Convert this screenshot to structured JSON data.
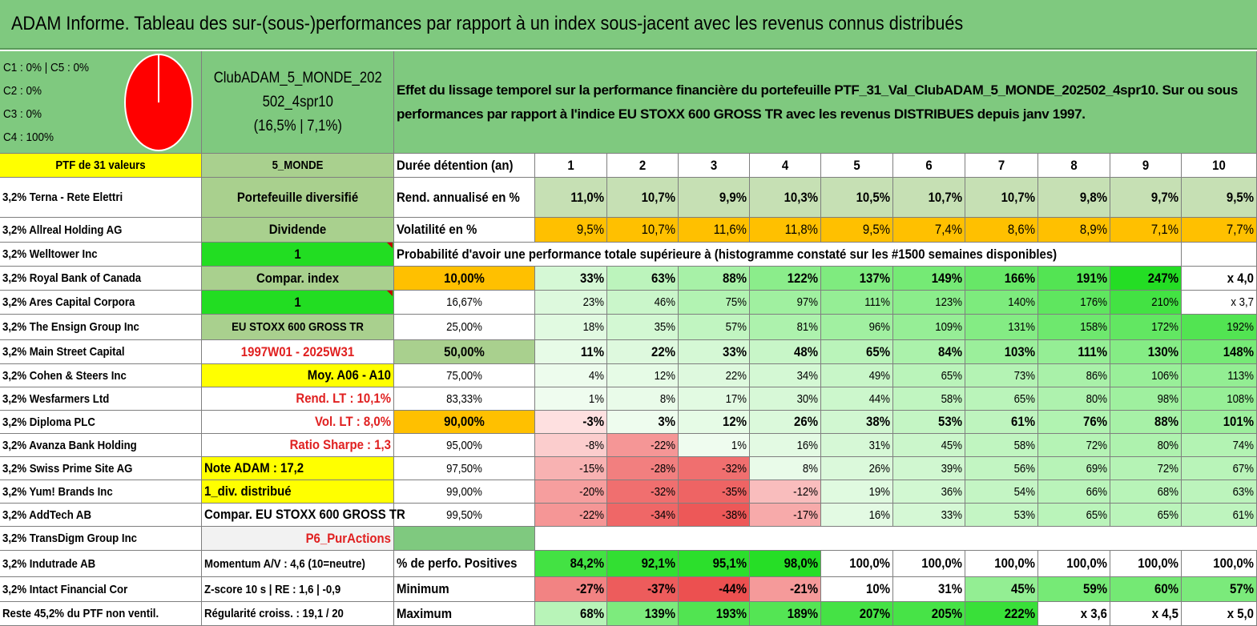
{
  "title": "ADAM Informe. Tableau des sur-(sous-)performances par rapport à un index sous-jacent avec les revenus connus distribués",
  "pie": {
    "lines": [
      "C1 : 0% | C5 : 0%",
      "C2 : 0%",
      "C3 : 0%",
      "C4 : 100%"
    ],
    "fill_color": "#ff0000"
  },
  "portfolio": {
    "name_line1": "ClubADAM_5_MONDE_202",
    "name_line2": "502_4spr10",
    "name_line3": "(16,5% | 7,1%)"
  },
  "description": "Effet du lissage temporel sur la performance financière du portefeuille PTF_31_Val_ClubADAM_5_MONDE_202502_4spr10. Sur ou sous performances par rapport à l'indice EU STOXX 600 GROSS TR avec les revenus DISTRIBUES depuis janv 1997.",
  "holdings_header": "PTF de 31 valeurs",
  "holdings": [
    "3,2% Terna - Rete Elettri",
    "3,2% Allreal Holding AG",
    "3,2% Welltower Inc",
    "3,2% Royal Bank of Canada",
    "3,2% Ares Capital Corpora",
    "3,2% The Ensign Group Inc",
    "3,2% Main Street Capital",
    "3,2% Cohen & Steers Inc",
    "3,2% Wesfarmers Ltd",
    "3,2% Diploma PLC",
    "3,2% Avanza Bank Holding",
    "3,2% Swiss Prime Site AG",
    "3,2% Yum! Brands Inc",
    "3,2% AddTech AB",
    "3,2% TransDigm Group Inc",
    "3,2% Indutrade AB",
    "3,2% Intact Financial Cor",
    "Reste 45,2% du PTF non ventil."
  ],
  "info": [
    "5_MONDE",
    "Portefeuille diversifié",
    "Dividende",
    "1",
    "Compar. index",
    "1",
    "EU STOXX 600 GROSS TR",
    "1997W01 - 2025W31",
    "Moy. A06 - A10",
    "Rend. LT : 10,1%",
    "Vol. LT : 8,0%",
    "Ratio Sharpe : 1,3",
    "Note ADAM : 17,2",
    "1_div. distribué",
    "Compar. EU STOXX 600 GROSS TR",
    "P6_PurActions",
    "Momentum A/V : 4,6 (10=neutre)",
    "Z-score 10 s | RE : 1,6 | -0,9",
    "Régularité croiss. : 19,1 / 20"
  ],
  "labels": {
    "duree": "Durée détention (an)",
    "rend": "Rend. annualisé en %",
    "vol": "Volatilité en %",
    "proba": "Probabilité d'avoir une performance totale supérieure à (histogramme constaté sur les #1500 semaines disponibles)",
    "positives": "% de perfo. Positives",
    "minimum": "Minimum",
    "maximum": "Maximum"
  },
  "years": [
    "1",
    "2",
    "3",
    "4",
    "5",
    "6",
    "7",
    "8",
    "9",
    "10"
  ],
  "rendement": [
    "11,0%",
    "10,7%",
    "9,9%",
    "10,3%",
    "10,5%",
    "10,7%",
    "10,7%",
    "9,8%",
    "9,7%",
    "9,5%"
  ],
  "volatilite": [
    "9,5%",
    "10,7%",
    "11,6%",
    "11,8%",
    "9,5%",
    "7,4%",
    "8,6%",
    "8,9%",
    "7,1%",
    "7,7%"
  ],
  "quantiles": [
    {
      "p": "10,00%",
      "values": [
        "33%",
        "63%",
        "88%",
        "122%",
        "137%",
        "149%",
        "166%",
        "191%",
        "247%",
        "x 4,0"
      ]
    },
    {
      "p": "16,67%",
      "values": [
        "23%",
        "46%",
        "75%",
        "97%",
        "111%",
        "123%",
        "140%",
        "176%",
        "210%",
        "x 3,7"
      ]
    },
    {
      "p": "25,00%",
      "values": [
        "18%",
        "35%",
        "57%",
        "81%",
        "96%",
        "109%",
        "131%",
        "158%",
        "172%",
        "192%"
      ]
    },
    {
      "p": "50,00%",
      "values": [
        "11%",
        "22%",
        "33%",
        "48%",
        "65%",
        "84%",
        "103%",
        "111%",
        "130%",
        "148%"
      ]
    },
    {
      "p": "75,00%",
      "values": [
        "4%",
        "12%",
        "22%",
        "34%",
        "49%",
        "65%",
        "73%",
        "86%",
        "106%",
        "113%"
      ]
    },
    {
      "p": "83,33%",
      "values": [
        "1%",
        "8%",
        "17%",
        "30%",
        "44%",
        "58%",
        "65%",
        "80%",
        "98%",
        "108%"
      ]
    },
    {
      "p": "90,00%",
      "values": [
        "-3%",
        "3%",
        "12%",
        "26%",
        "38%",
        "53%",
        "61%",
        "76%",
        "88%",
        "101%"
      ]
    },
    {
      "p": "95,00%",
      "values": [
        "-8%",
        "-22%",
        "1%",
        "16%",
        "31%",
        "45%",
        "58%",
        "72%",
        "80%",
        "74%"
      ]
    },
    {
      "p": "97,50%",
      "values": [
        "-15%",
        "-28%",
        "-32%",
        "8%",
        "26%",
        "39%",
        "56%",
        "69%",
        "72%",
        "67%"
      ]
    },
    {
      "p": "99,00%",
      "values": [
        "-20%",
        "-32%",
        "-35%",
        "-12%",
        "19%",
        "36%",
        "54%",
        "66%",
        "68%",
        "63%"
      ]
    },
    {
      "p": "99,50%",
      "values": [
        "-22%",
        "-34%",
        "-38%",
        "-17%",
        "16%",
        "33%",
        "53%",
        "65%",
        "65%",
        "61%"
      ]
    }
  ],
  "positives": [
    "84,2%",
    "92,1%",
    "95,1%",
    "98,0%",
    "100,0%",
    "100,0%",
    "100,0%",
    "100,0%",
    "100,0%",
    "100,0%"
  ],
  "minimum": [
    "-27%",
    "-37%",
    "-44%",
    "-21%",
    "10%",
    "31%",
    "45%",
    "59%",
    "60%",
    "57%"
  ],
  "maximum": [
    "68%",
    "139%",
    "193%",
    "189%",
    "207%",
    "205%",
    "222%",
    "x 3,6",
    "x 4,5",
    "x 5,0"
  ],
  "colors": {
    "header_green": "#7fc97f",
    "yellow": "#ffff00",
    "bright_green": "#22dd22",
    "orange": "#ffc000",
    "gray_green": "#a9d08e",
    "rend_green": "#c6e0b4",
    "light_gray": "#f2f2f2"
  }
}
